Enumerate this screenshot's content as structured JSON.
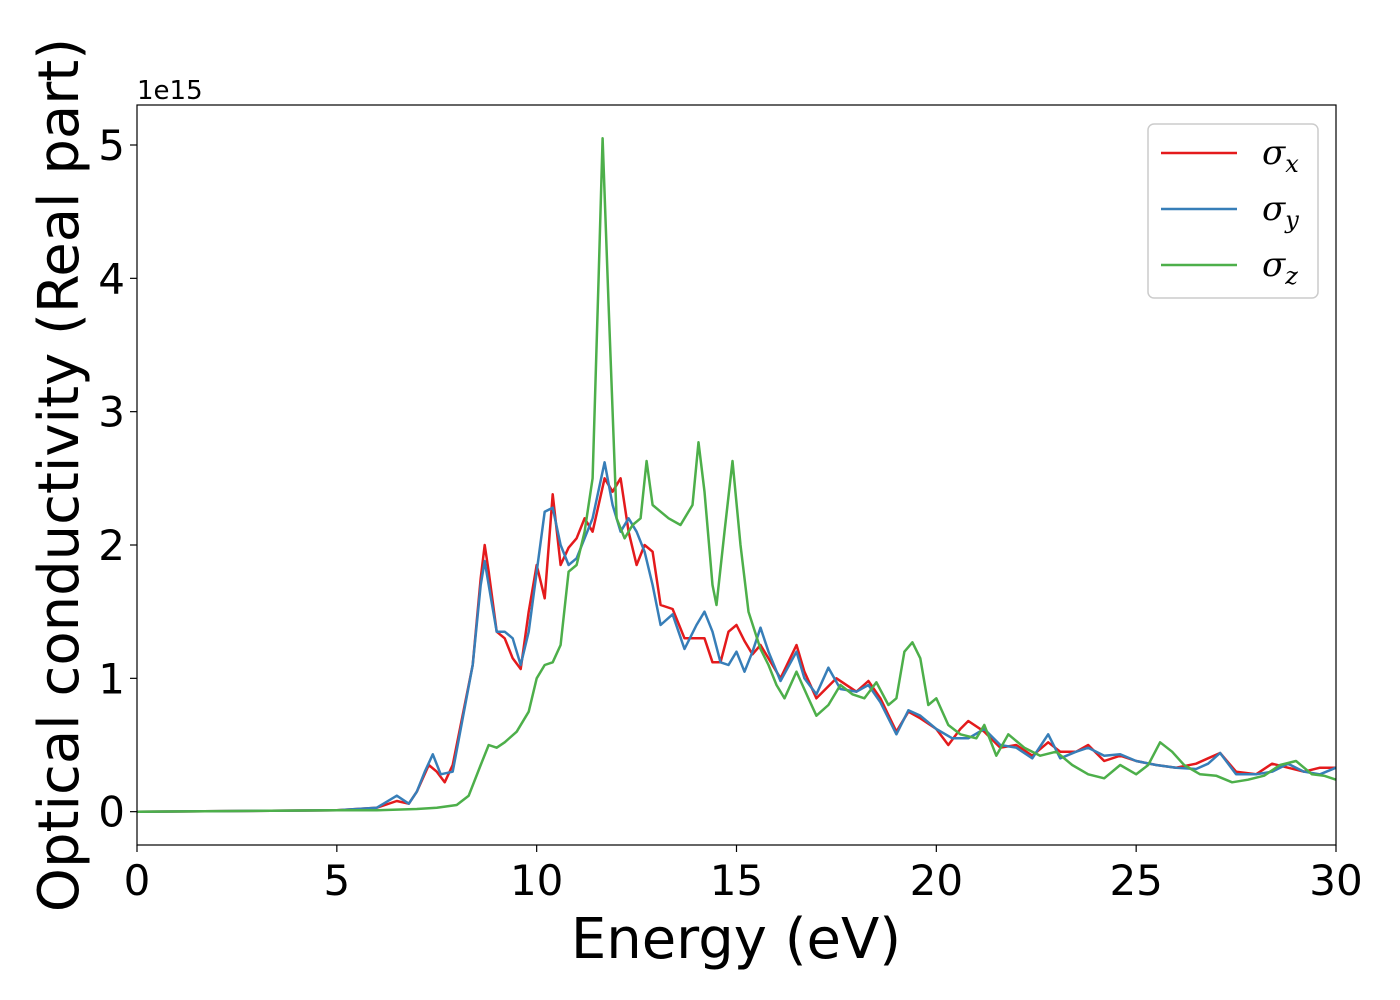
{
  "chart_data": {
    "type": "line",
    "xlabel": "Energy (eV)",
    "ylabel": "Optical conductivity (Real part)",
    "y_offset_label": "1e15",
    "xlim": [
      0,
      30
    ],
    "ylim": [
      -0.25,
      5.3
    ],
    "x_ticks": [
      0,
      5,
      10,
      15,
      20,
      25,
      30
    ],
    "x_tick_labels": [
      "0",
      "5",
      "10",
      "15",
      "20",
      "25",
      "30"
    ],
    "y_ticks": [
      0,
      1,
      2,
      3,
      4,
      5
    ],
    "y_tick_labels": [
      "0",
      "1",
      "2",
      "3",
      "4",
      "5"
    ],
    "grid": false,
    "legend_position": "top-right",
    "series": [
      {
        "name": "σ",
        "subscript": "x",
        "color": "#e41a1c",
        "points": [
          [
            0,
            0
          ],
          [
            5,
            0.01
          ],
          [
            6,
            0.03
          ],
          [
            6.5,
            0.08
          ],
          [
            6.8,
            0.06
          ],
          [
            7.0,
            0.15
          ],
          [
            7.3,
            0.35
          ],
          [
            7.5,
            0.3
          ],
          [
            7.7,
            0.22
          ],
          [
            7.9,
            0.35
          ],
          [
            8.1,
            0.65
          ],
          [
            8.4,
            1.1
          ],
          [
            8.6,
            1.75
          ],
          [
            8.7,
            2.0
          ],
          [
            8.8,
            1.8
          ],
          [
            9.0,
            1.35
          ],
          [
            9.2,
            1.3
          ],
          [
            9.4,
            1.15
          ],
          [
            9.6,
            1.07
          ],
          [
            9.8,
            1.5
          ],
          [
            10.0,
            1.85
          ],
          [
            10.2,
            1.6
          ],
          [
            10.4,
            2.38
          ],
          [
            10.6,
            1.85
          ],
          [
            10.8,
            1.98
          ],
          [
            11.0,
            2.05
          ],
          [
            11.2,
            2.2
          ],
          [
            11.4,
            2.1
          ],
          [
            11.7,
            2.5
          ],
          [
            11.9,
            2.4
          ],
          [
            12.1,
            2.5
          ],
          [
            12.3,
            2.1
          ],
          [
            12.5,
            1.85
          ],
          [
            12.7,
            2.0
          ],
          [
            12.9,
            1.95
          ],
          [
            13.1,
            1.55
          ],
          [
            13.4,
            1.52
          ],
          [
            13.7,
            1.3
          ],
          [
            14.0,
            1.3
          ],
          [
            14.2,
            1.3
          ],
          [
            14.4,
            1.12
          ],
          [
            14.6,
            1.12
          ],
          [
            14.8,
            1.35
          ],
          [
            15.0,
            1.4
          ],
          [
            15.2,
            1.28
          ],
          [
            15.4,
            1.18
          ],
          [
            15.6,
            1.25
          ],
          [
            15.8,
            1.15
          ],
          [
            16.1,
            1.0
          ],
          [
            16.5,
            1.25
          ],
          [
            16.7,
            1.05
          ],
          [
            17.0,
            0.85
          ],
          [
            17.5,
            1.0
          ],
          [
            18.0,
            0.9
          ],
          [
            18.3,
            0.98
          ],
          [
            18.6,
            0.85
          ],
          [
            19.0,
            0.6
          ],
          [
            19.3,
            0.75
          ],
          [
            19.6,
            0.7
          ],
          [
            20.0,
            0.62
          ],
          [
            20.3,
            0.5
          ],
          [
            20.6,
            0.62
          ],
          [
            20.8,
            0.68
          ],
          [
            21.2,
            0.6
          ],
          [
            21.6,
            0.48
          ],
          [
            22.0,
            0.5
          ],
          [
            22.4,
            0.42
          ],
          [
            22.8,
            0.52
          ],
          [
            23.1,
            0.45
          ],
          [
            23.5,
            0.45
          ],
          [
            23.8,
            0.5
          ],
          [
            24.2,
            0.38
          ],
          [
            24.6,
            0.42
          ],
          [
            25.0,
            0.38
          ],
          [
            25.5,
            0.35
          ],
          [
            26.0,
            0.33
          ],
          [
            26.5,
            0.36
          ],
          [
            26.8,
            0.4
          ],
          [
            27.1,
            0.44
          ],
          [
            27.5,
            0.3
          ],
          [
            28.0,
            0.28
          ],
          [
            28.4,
            0.36
          ],
          [
            28.8,
            0.33
          ],
          [
            29.2,
            0.3
          ],
          [
            29.6,
            0.33
          ],
          [
            30,
            0.33
          ]
        ]
      },
      {
        "name": "σ",
        "subscript": "y",
        "color": "#377eb8",
        "points": [
          [
            0,
            0
          ],
          [
            5,
            0.01
          ],
          [
            6,
            0.03
          ],
          [
            6.5,
            0.12
          ],
          [
            6.8,
            0.06
          ],
          [
            7.0,
            0.15
          ],
          [
            7.2,
            0.3
          ],
          [
            7.4,
            0.43
          ],
          [
            7.6,
            0.28
          ],
          [
            7.9,
            0.3
          ],
          [
            8.1,
            0.62
          ],
          [
            8.4,
            1.1
          ],
          [
            8.6,
            1.7
          ],
          [
            8.7,
            1.88
          ],
          [
            8.8,
            1.7
          ],
          [
            9.0,
            1.35
          ],
          [
            9.2,
            1.35
          ],
          [
            9.4,
            1.3
          ],
          [
            9.6,
            1.1
          ],
          [
            9.8,
            1.35
          ],
          [
            10.0,
            1.8
          ],
          [
            10.2,
            2.25
          ],
          [
            10.4,
            2.28
          ],
          [
            10.6,
            2.0
          ],
          [
            10.8,
            1.85
          ],
          [
            11.0,
            1.9
          ],
          [
            11.2,
            2.05
          ],
          [
            11.4,
            2.2
          ],
          [
            11.7,
            2.62
          ],
          [
            11.9,
            2.3
          ],
          [
            12.1,
            2.1
          ],
          [
            12.3,
            2.2
          ],
          [
            12.5,
            2.1
          ],
          [
            12.7,
            1.95
          ],
          [
            12.9,
            1.7
          ],
          [
            13.1,
            1.4
          ],
          [
            13.4,
            1.48
          ],
          [
            13.7,
            1.22
          ],
          [
            14.0,
            1.4
          ],
          [
            14.2,
            1.5
          ],
          [
            14.4,
            1.35
          ],
          [
            14.6,
            1.12
          ],
          [
            14.8,
            1.1
          ],
          [
            15.0,
            1.2
          ],
          [
            15.2,
            1.05
          ],
          [
            15.4,
            1.2
          ],
          [
            15.6,
            1.38
          ],
          [
            15.8,
            1.2
          ],
          [
            16.1,
            0.98
          ],
          [
            16.5,
            1.2
          ],
          [
            16.7,
            1.0
          ],
          [
            17.0,
            0.88
          ],
          [
            17.3,
            1.08
          ],
          [
            17.6,
            0.92
          ],
          [
            18.0,
            0.9
          ],
          [
            18.3,
            0.95
          ],
          [
            18.6,
            0.82
          ],
          [
            19.0,
            0.58
          ],
          [
            19.3,
            0.76
          ],
          [
            19.6,
            0.72
          ],
          [
            20.0,
            0.62
          ],
          [
            20.4,
            0.55
          ],
          [
            20.8,
            0.55
          ],
          [
            21.2,
            0.62
          ],
          [
            21.6,
            0.5
          ],
          [
            22.0,
            0.48
          ],
          [
            22.4,
            0.4
          ],
          [
            22.8,
            0.58
          ],
          [
            23.1,
            0.4
          ],
          [
            23.5,
            0.45
          ],
          [
            23.8,
            0.48
          ],
          [
            24.2,
            0.42
          ],
          [
            24.6,
            0.43
          ],
          [
            25.0,
            0.38
          ],
          [
            25.5,
            0.35
          ],
          [
            26.0,
            0.33
          ],
          [
            26.5,
            0.32
          ],
          [
            26.8,
            0.36
          ],
          [
            27.1,
            0.44
          ],
          [
            27.5,
            0.28
          ],
          [
            28.0,
            0.28
          ],
          [
            28.4,
            0.3
          ],
          [
            28.8,
            0.36
          ],
          [
            29.2,
            0.3
          ],
          [
            29.6,
            0.28
          ],
          [
            30,
            0.33
          ]
        ]
      },
      {
        "name": "σ",
        "subscript": "z",
        "color": "#4daf4a",
        "points": [
          [
            0,
            0
          ],
          [
            5,
            0.01
          ],
          [
            6,
            0.01
          ],
          [
            7,
            0.02
          ],
          [
            7.5,
            0.03
          ],
          [
            8.0,
            0.05
          ],
          [
            8.3,
            0.12
          ],
          [
            8.6,
            0.35
          ],
          [
            8.8,
            0.5
          ],
          [
            9.0,
            0.48
          ],
          [
            9.2,
            0.52
          ],
          [
            9.5,
            0.6
          ],
          [
            9.8,
            0.75
          ],
          [
            10.0,
            1.0
          ],
          [
            10.2,
            1.1
          ],
          [
            10.4,
            1.12
          ],
          [
            10.6,
            1.25
          ],
          [
            10.8,
            1.8
          ],
          [
            11.0,
            1.85
          ],
          [
            11.2,
            2.1
          ],
          [
            11.4,
            2.5
          ],
          [
            11.55,
            4.0
          ],
          [
            11.65,
            5.05
          ],
          [
            11.8,
            3.8
          ],
          [
            12.0,
            2.2
          ],
          [
            12.2,
            2.05
          ],
          [
            12.4,
            2.15
          ],
          [
            12.6,
            2.2
          ],
          [
            12.75,
            2.63
          ],
          [
            12.9,
            2.3
          ],
          [
            13.1,
            2.25
          ],
          [
            13.3,
            2.2
          ],
          [
            13.6,
            2.15
          ],
          [
            13.9,
            2.3
          ],
          [
            14.05,
            2.77
          ],
          [
            14.2,
            2.4
          ],
          [
            14.4,
            1.7
          ],
          [
            14.5,
            1.55
          ],
          [
            14.7,
            2.1
          ],
          [
            14.9,
            2.63
          ],
          [
            15.1,
            2.0
          ],
          [
            15.3,
            1.5
          ],
          [
            15.6,
            1.22
          ],
          [
            15.8,
            1.1
          ],
          [
            16.0,
            0.95
          ],
          [
            16.2,
            0.85
          ],
          [
            16.5,
            1.05
          ],
          [
            16.8,
            0.85
          ],
          [
            17.0,
            0.72
          ],
          [
            17.3,
            0.8
          ],
          [
            17.6,
            0.95
          ],
          [
            17.9,
            0.88
          ],
          [
            18.2,
            0.85
          ],
          [
            18.5,
            0.97
          ],
          [
            18.8,
            0.8
          ],
          [
            19.0,
            0.85
          ],
          [
            19.2,
            1.2
          ],
          [
            19.4,
            1.27
          ],
          [
            19.6,
            1.15
          ],
          [
            19.8,
            0.8
          ],
          [
            20.0,
            0.85
          ],
          [
            20.3,
            0.65
          ],
          [
            20.6,
            0.58
          ],
          [
            21.0,
            0.55
          ],
          [
            21.2,
            0.65
          ],
          [
            21.5,
            0.42
          ],
          [
            21.8,
            0.58
          ],
          [
            22.2,
            0.48
          ],
          [
            22.6,
            0.42
          ],
          [
            23.0,
            0.45
          ],
          [
            23.4,
            0.35
          ],
          [
            23.8,
            0.28
          ],
          [
            24.2,
            0.25
          ],
          [
            24.6,
            0.35
          ],
          [
            25.0,
            0.28
          ],
          [
            25.3,
            0.35
          ],
          [
            25.6,
            0.52
          ],
          [
            25.9,
            0.45
          ],
          [
            26.2,
            0.35
          ],
          [
            26.6,
            0.28
          ],
          [
            27.0,
            0.27
          ],
          [
            27.4,
            0.22
          ],
          [
            27.8,
            0.24
          ],
          [
            28.2,
            0.27
          ],
          [
            28.6,
            0.35
          ],
          [
            29.0,
            0.38
          ],
          [
            29.4,
            0.28
          ],
          [
            29.7,
            0.27
          ],
          [
            30,
            0.24
          ]
        ]
      }
    ]
  }
}
